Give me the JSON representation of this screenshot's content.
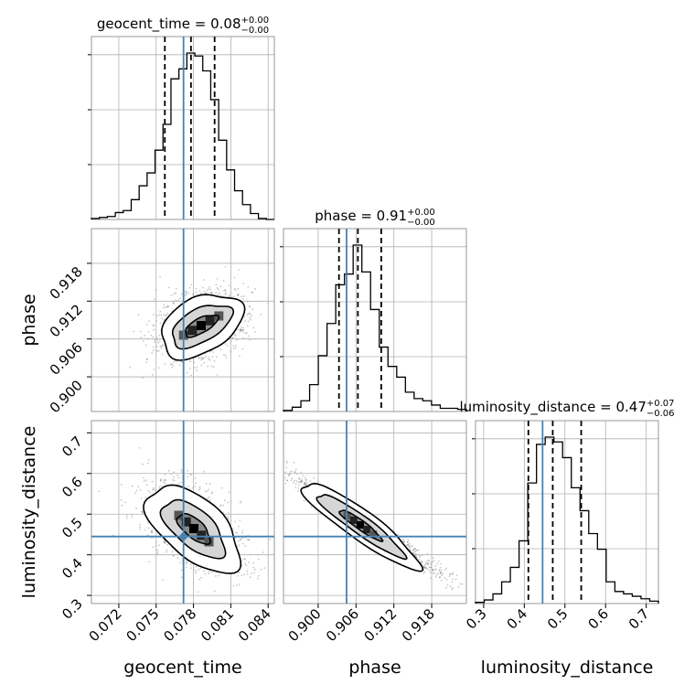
{
  "chart_data": {
    "type": "corner",
    "parameters": [
      "geocent_time",
      "phase",
      "luminosity_distance"
    ],
    "truths": {
      "geocent_time": 0.0772,
      "phase": 0.9045,
      "luminosity_distance": 0.445
    },
    "titles": [
      {
        "param": "geocent_time",
        "text": "geocent_time = 0.08",
        "sup": "+0.00",
        "sub": "−0.00"
      },
      {
        "param": "phase",
        "text": "phase = 0.91",
        "sup": "+0.00",
        "sub": "−0.00"
      },
      {
        "param": "luminosity_distance",
        "text": "luminosity_distance = 0.47",
        "sup": "+0.07",
        "sub": "−0.06"
      }
    ],
    "ranges": {
      "geocent_time": [
        0.0698,
        0.0845
      ],
      "phase": [
        0.8945,
        0.9235
      ],
      "luminosity_distance": [
        0.28,
        0.73
      ]
    },
    "ticks": {
      "geocent_time": [
        "0.072",
        "0.075",
        "0.078",
        "0.081",
        "0.084"
      ],
      "phase": [
        "0.900",
        "0.906",
        "0.912",
        "0.918"
      ],
      "luminosity_distance": [
        "0.3",
        "0.4",
        "0.5",
        "0.6",
        "0.7"
      ]
    },
    "marginals": [
      {
        "param": "geocent_time",
        "quantiles": [
          0.0757,
          0.0778,
          0.0797
        ],
        "counts": [
          1,
          2,
          3,
          7,
          9,
          20,
          34,
          47,
          70,
          96,
          142,
          152,
          168,
          165,
          150,
          121,
          80,
          50,
          29,
          15,
          6,
          1,
          0
        ]
      },
      {
        "param": "phase",
        "quantiles": [
          0.9033,
          0.9063,
          0.91
        ],
        "counts": [
          1,
          4,
          10,
          25,
          52,
          82,
          118,
          128,
          155,
          130,
          95,
          60,
          42,
          32,
          18,
          12,
          10,
          6,
          3,
          3,
          2
        ]
      },
      {
        "param": "luminosity_distance",
        "quantiles": [
          0.41,
          0.47,
          0.54
        ],
        "counts": [
          1,
          3,
          8,
          18,
          30,
          52,
          100,
          132,
          138,
          134,
          121,
          96,
          77,
          58,
          45,
          18,
          10,
          8,
          6,
          4,
          2
        ]
      }
    ],
    "joint_2d": [
      {
        "x": "geocent_time",
        "y": "phase",
        "center": [
          0.0784,
          0.9072
        ],
        "level": "1σ/2σ/3σ contours"
      },
      {
        "x": "geocent_time",
        "y": "luminosity_distance",
        "center": [
          0.0778,
          0.455
        ],
        "level": "1σ/2σ/3σ contours"
      },
      {
        "x": "phase",
        "y": "luminosity_distance",
        "center": [
          0.9072,
          0.46
        ],
        "level": "1σ/2σ/3σ contours"
      }
    ],
    "xlabels": [
      "geocent_time",
      "phase",
      "luminosity_distance"
    ],
    "ylabels": [
      "phase",
      "luminosity_distance"
    ],
    "truth_color": "#4682b4",
    "grid": true
  }
}
